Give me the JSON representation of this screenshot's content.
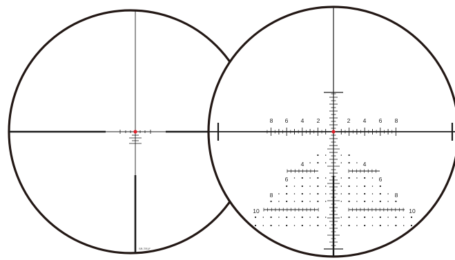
{
  "colors": {
    "ring": "#231815",
    "line": "#1a1a1a",
    "center_dot": "#e0202a",
    "background": "#ffffff"
  },
  "left_reticle": {
    "model_mark": "SR-TR1F"
  },
  "right_reticle": {
    "horizontal_labels": [
      "8",
      "6",
      "4",
      "2",
      "2",
      "4",
      "6",
      "8"
    ],
    "tree_row_4": [
      "4",
      "4"
    ],
    "tree_row_6": [
      "6",
      "6"
    ],
    "tree_row_8": [
      "8",
      "8"
    ],
    "tree_row_10": [
      "10",
      "10"
    ]
  }
}
